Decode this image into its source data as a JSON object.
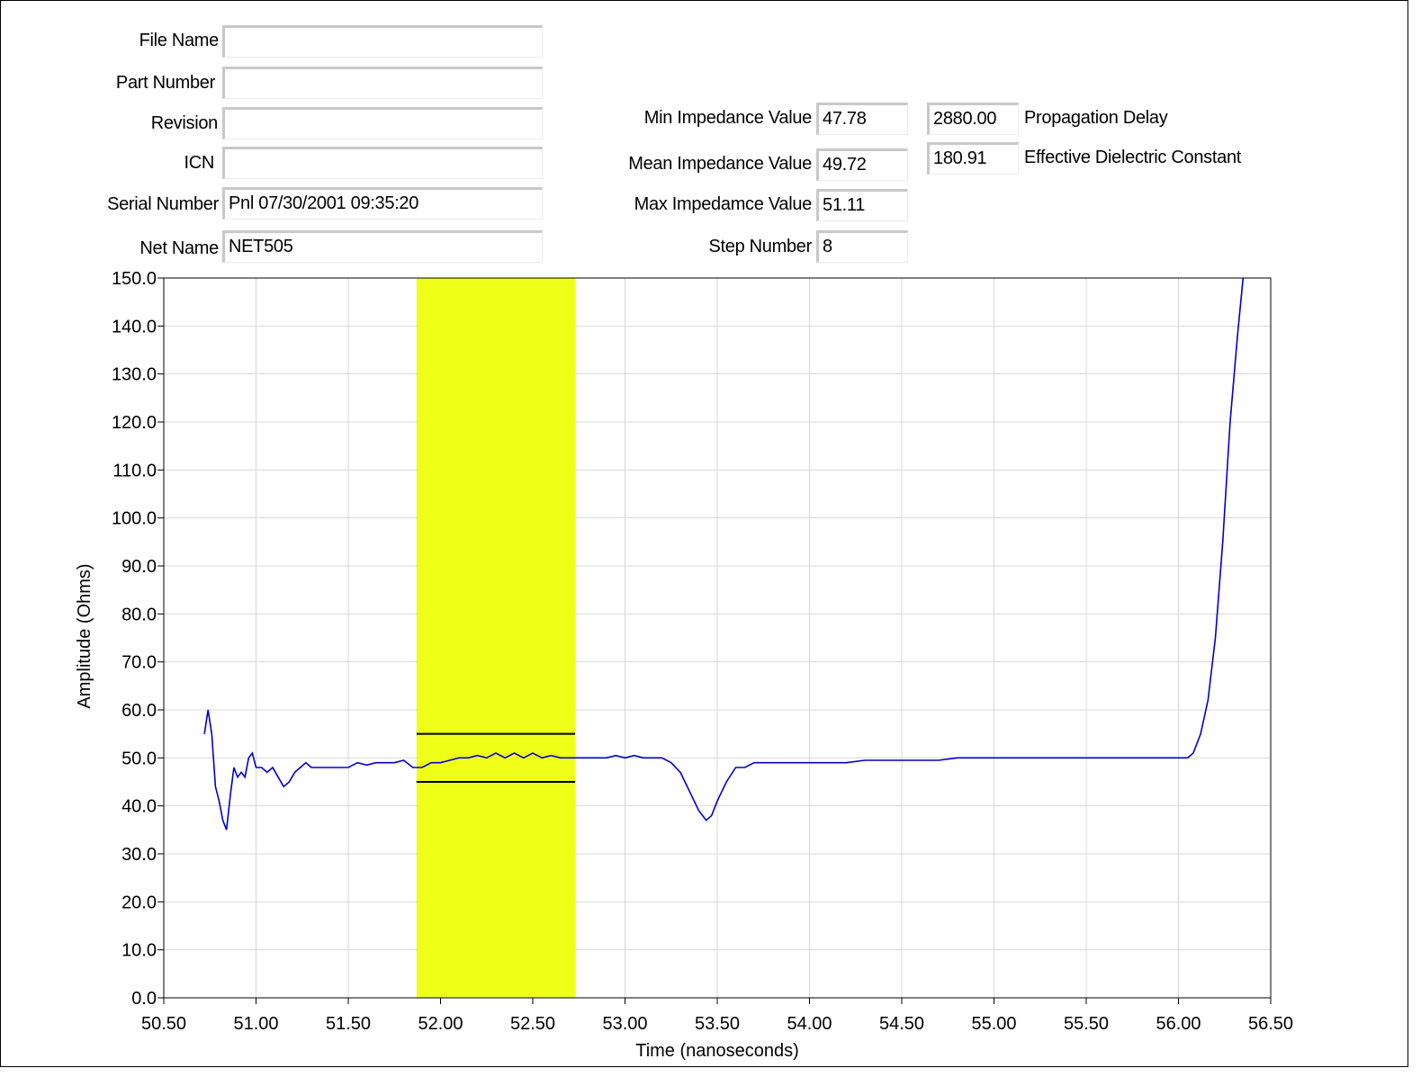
{
  "header": {
    "file_name_label": "File Name",
    "file_name_value": "",
    "part_number_label": "Part Number",
    "part_number_value": "",
    "revision_label": "Revision",
    "revision_value": "",
    "icn_label": "ICN",
    "icn_value": "",
    "serial_number_label": "Serial Number",
    "serial_number_value": "Pnl 07/30/2001 09:35:20",
    "net_name_label": "Net Name",
    "net_name_value": "NET505"
  },
  "measurements": {
    "min_label": "Min Impedance Value",
    "min_value": "47.78",
    "mean_label": "Mean Impedance Value",
    "mean_value": "49.72",
    "max_label": "Max Impedamce Value",
    "max_value": "51.11",
    "step_label": "Step Number",
    "step_value": "8",
    "propagation_delay_label": "Propagation Delay",
    "propagation_delay_value": "2880.00",
    "dielectric_label": "Effective Dielectric Constant",
    "dielectric_value": "180.91"
  },
  "chart_data": {
    "type": "line",
    "xlabel": "Time (nanoseconds)",
    "ylabel": "Amplitude (Ohms)",
    "xlim": [
      50.5,
      56.5
    ],
    "ylim": [
      0,
      150
    ],
    "x_ticks": [
      "50.50",
      "51.00",
      "51.50",
      "52.00",
      "52.50",
      "53.00",
      "53.50",
      "54.00",
      "54.50",
      "55.00",
      "55.50",
      "56.00",
      "56.50"
    ],
    "y_ticks": [
      "0.0",
      "10.0",
      "20.0",
      "30.0",
      "40.0",
      "50.0",
      "60.0",
      "70.0",
      "80.0",
      "90.0",
      "100.0",
      "110.0",
      "120.0",
      "130.0",
      "140.0",
      "150.0"
    ],
    "grid": true,
    "highlight_region": {
      "x_start": 51.87,
      "x_end": 52.73,
      "color": "#f0ff18"
    },
    "limit_lines": [
      55,
      45
    ],
    "series": [
      {
        "color": "#0000cc",
        "points": [
          [
            50.72,
            55
          ],
          [
            50.74,
            60
          ],
          [
            50.76,
            55
          ],
          [
            50.78,
            44
          ],
          [
            50.8,
            41
          ],
          [
            50.82,
            37
          ],
          [
            50.84,
            35
          ],
          [
            50.86,
            42
          ],
          [
            50.88,
            48
          ],
          [
            50.9,
            46
          ],
          [
            50.92,
            47
          ],
          [
            50.94,
            46
          ],
          [
            50.96,
            50
          ],
          [
            50.98,
            51
          ],
          [
            51.0,
            48
          ],
          [
            51.03,
            48
          ],
          [
            51.06,
            47
          ],
          [
            51.09,
            48
          ],
          [
            51.12,
            46
          ],
          [
            51.15,
            44
          ],
          [
            51.18,
            45
          ],
          [
            51.21,
            47
          ],
          [
            51.24,
            48
          ],
          [
            51.27,
            49
          ],
          [
            51.3,
            48
          ],
          [
            51.35,
            48
          ],
          [
            51.4,
            48
          ],
          [
            51.45,
            48
          ],
          [
            51.5,
            48
          ],
          [
            51.55,
            49
          ],
          [
            51.6,
            48.5
          ],
          [
            51.65,
            49
          ],
          [
            51.7,
            49
          ],
          [
            51.75,
            49
          ],
          [
            51.8,
            49.5
          ],
          [
            51.85,
            48
          ],
          [
            51.9,
            48
          ],
          [
            51.95,
            49
          ],
          [
            52.0,
            49
          ],
          [
            52.05,
            49.5
          ],
          [
            52.1,
            50
          ],
          [
            52.15,
            50
          ],
          [
            52.2,
            50.5
          ],
          [
            52.25,
            50
          ],
          [
            52.3,
            51
          ],
          [
            52.35,
            50
          ],
          [
            52.4,
            51
          ],
          [
            52.45,
            50
          ],
          [
            52.5,
            51
          ],
          [
            52.55,
            50
          ],
          [
            52.6,
            50.5
          ],
          [
            52.65,
            50
          ],
          [
            52.7,
            50
          ],
          [
            52.75,
            50
          ],
          [
            52.8,
            50
          ],
          [
            52.85,
            50
          ],
          [
            52.9,
            50
          ],
          [
            52.95,
            50.5
          ],
          [
            53.0,
            50
          ],
          [
            53.05,
            50.5
          ],
          [
            53.1,
            50
          ],
          [
            53.15,
            50
          ],
          [
            53.2,
            50
          ],
          [
            53.25,
            49
          ],
          [
            53.3,
            47
          ],
          [
            53.35,
            43
          ],
          [
            53.4,
            39
          ],
          [
            53.44,
            37
          ],
          [
            53.47,
            38
          ],
          [
            53.5,
            41
          ],
          [
            53.55,
            45
          ],
          [
            53.6,
            48
          ],
          [
            53.65,
            48
          ],
          [
            53.7,
            49
          ],
          [
            53.8,
            49
          ],
          [
            53.9,
            49
          ],
          [
            54.0,
            49
          ],
          [
            54.05,
            49
          ],
          [
            54.1,
            49
          ],
          [
            54.15,
            49
          ],
          [
            54.2,
            49
          ],
          [
            54.3,
            49.5
          ],
          [
            54.4,
            49.5
          ],
          [
            54.5,
            49.5
          ],
          [
            54.6,
            49.5
          ],
          [
            54.7,
            49.5
          ],
          [
            54.8,
            50
          ],
          [
            54.9,
            50
          ],
          [
            55.0,
            50
          ],
          [
            55.1,
            50
          ],
          [
            55.2,
            50
          ],
          [
            55.3,
            50
          ],
          [
            55.4,
            50
          ],
          [
            55.5,
            50
          ],
          [
            55.6,
            50
          ],
          [
            55.7,
            50
          ],
          [
            55.8,
            50
          ],
          [
            55.9,
            50
          ],
          [
            56.0,
            50
          ],
          [
            56.05,
            50
          ],
          [
            56.08,
            51
          ],
          [
            56.12,
            55
          ],
          [
            56.16,
            62
          ],
          [
            56.2,
            75
          ],
          [
            56.24,
            95
          ],
          [
            56.28,
            120
          ],
          [
            56.32,
            138
          ],
          [
            56.35,
            150
          ]
        ]
      }
    ]
  }
}
